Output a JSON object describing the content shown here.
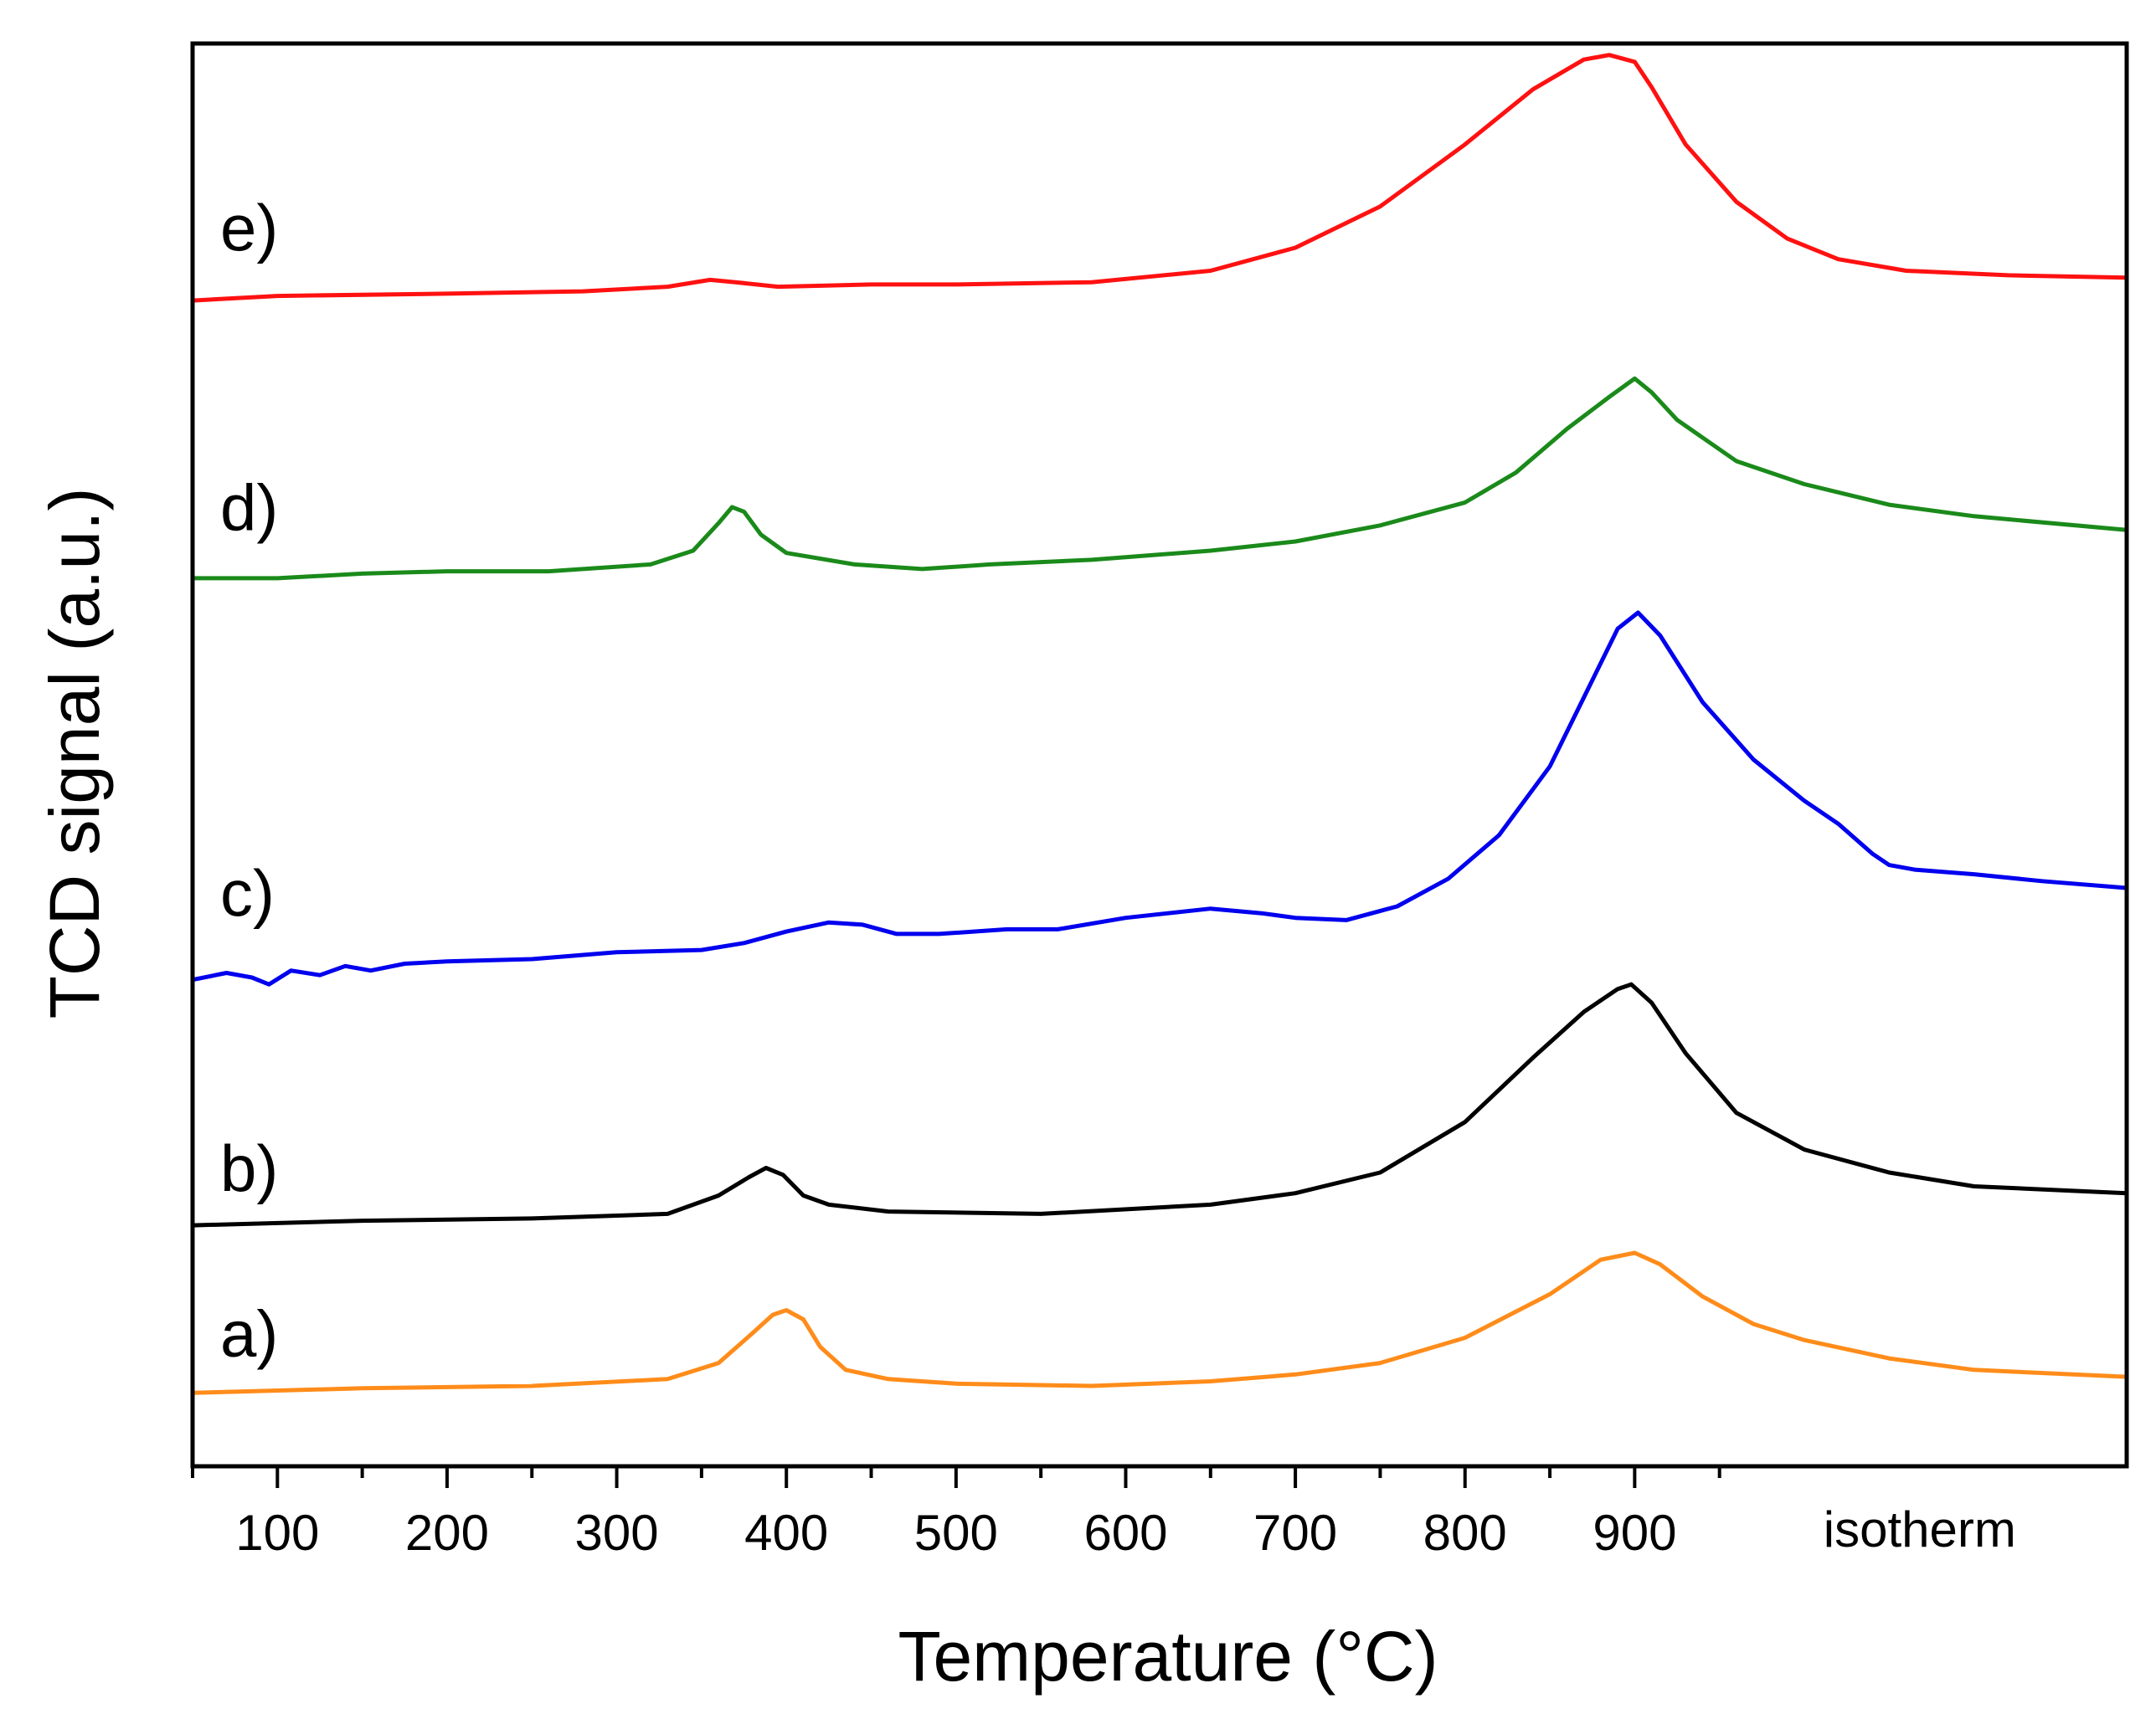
{
  "chart_data": {
    "type": "line",
    "title": "",
    "xlabel": "Temperature (°C)",
    "ylabel": "TCD signal (a.u.)",
    "xlim": [
      50,
      1190
    ],
    "ylim": [
      0,
      6.2
    ],
    "x_ticks": [
      100,
      200,
      300,
      400,
      500,
      600,
      700,
      800,
      900
    ],
    "x_tick_labels": [
      "100",
      "200",
      "300",
      "400",
      "500",
      "600",
      "700",
      "800",
      "900"
    ],
    "isotherm_label": "isotherm",
    "isotherm_label_x": 1068,
    "grid": false,
    "legend": "none",
    "series": [
      {
        "name": "a)",
        "color": "#ff8c1a",
        "label_at": [
          15,
          0.48
        ],
        "points": [
          [
            50,
            0.32
          ],
          [
            150,
            0.34
          ],
          [
            250,
            0.35
          ],
          [
            330,
            0.38
          ],
          [
            360,
            0.45
          ],
          [
            380,
            0.58
          ],
          [
            392,
            0.66
          ],
          [
            400,
            0.68
          ],
          [
            410,
            0.64
          ],
          [
            420,
            0.52
          ],
          [
            435,
            0.42
          ],
          [
            460,
            0.38
          ],
          [
            500,
            0.36
          ],
          [
            580,
            0.35
          ],
          [
            650,
            0.37
          ],
          [
            700,
            0.4
          ],
          [
            750,
            0.45
          ],
          [
            800,
            0.56
          ],
          [
            850,
            0.75
          ],
          [
            880,
            0.9
          ],
          [
            900,
            0.93
          ],
          [
            915,
            0.88
          ],
          [
            940,
            0.74
          ],
          [
            970,
            0.62
          ],
          [
            1000,
            0.55
          ],
          [
            1050,
            0.47
          ],
          [
            1100,
            0.42
          ],
          [
            1190,
            0.39
          ]
        ]
      },
      {
        "name": "b)",
        "color": "#000000",
        "label_at": [
          20,
          1.2
        ],
        "points": [
          [
            50,
            1.05
          ],
          [
            150,
            1.07
          ],
          [
            250,
            1.08
          ],
          [
            330,
            1.1
          ],
          [
            360,
            1.18
          ],
          [
            378,
            1.26
          ],
          [
            388,
            1.3
          ],
          [
            398,
            1.27
          ],
          [
            410,
            1.18
          ],
          [
            425,
            1.14
          ],
          [
            460,
            1.11
          ],
          [
            550,
            1.1
          ],
          [
            650,
            1.14
          ],
          [
            700,
            1.19
          ],
          [
            750,
            1.28
          ],
          [
            800,
            1.5
          ],
          [
            840,
            1.78
          ],
          [
            870,
            1.98
          ],
          [
            890,
            2.08
          ],
          [
            898,
            2.1
          ],
          [
            910,
            2.02
          ],
          [
            930,
            1.8
          ],
          [
            960,
            1.54
          ],
          [
            1000,
            1.38
          ],
          [
            1050,
            1.28
          ],
          [
            1100,
            1.22
          ],
          [
            1190,
            1.19
          ]
        ]
      },
      {
        "name": "c)",
        "color": "#0000ee",
        "label_at": [
          18,
          2.4
        ],
        "points": [
          [
            50,
            2.12
          ],
          [
            70,
            2.15
          ],
          [
            85,
            2.13
          ],
          [
            95,
            2.1
          ],
          [
            108,
            2.16
          ],
          [
            125,
            2.14
          ],
          [
            140,
            2.18
          ],
          [
            155,
            2.16
          ],
          [
            175,
            2.19
          ],
          [
            200,
            2.2
          ],
          [
            250,
            2.21
          ],
          [
            300,
            2.24
          ],
          [
            350,
            2.25
          ],
          [
            375,
            2.28
          ],
          [
            400,
            2.33
          ],
          [
            425,
            2.37
          ],
          [
            445,
            2.36
          ],
          [
            465,
            2.32
          ],
          [
            490,
            2.32
          ],
          [
            530,
            2.34
          ],
          [
            560,
            2.34
          ],
          [
            600,
            2.39
          ],
          [
            650,
            2.43
          ],
          [
            680,
            2.41
          ],
          [
            700,
            2.39
          ],
          [
            730,
            2.38
          ],
          [
            760,
            2.44
          ],
          [
            790,
            2.56
          ],
          [
            820,
            2.75
          ],
          [
            850,
            3.05
          ],
          [
            870,
            3.35
          ],
          [
            890,
            3.65
          ],
          [
            902,
            3.72
          ],
          [
            915,
            3.62
          ],
          [
            940,
            3.33
          ],
          [
            970,
            3.08
          ],
          [
            1000,
            2.9
          ],
          [
            1020,
            2.8
          ],
          [
            1040,
            2.67
          ],
          [
            1050,
            2.62
          ],
          [
            1065,
            2.6
          ],
          [
            1100,
            2.58
          ],
          [
            1140,
            2.55
          ],
          [
            1190,
            2.52
          ]
        ]
      },
      {
        "name": "d)",
        "color": "#1a8a1a",
        "label_at": [
          18,
          4.08
        ],
        "points": [
          [
            50,
            3.87
          ],
          [
            100,
            3.87
          ],
          [
            150,
            3.89
          ],
          [
            200,
            3.9
          ],
          [
            260,
            3.9
          ],
          [
            320,
            3.93
          ],
          [
            345,
            3.99
          ],
          [
            360,
            4.11
          ],
          [
            368,
            4.18
          ],
          [
            375,
            4.16
          ],
          [
            385,
            4.06
          ],
          [
            400,
            3.98
          ],
          [
            440,
            3.93
          ],
          [
            480,
            3.91
          ],
          [
            520,
            3.93
          ],
          [
            580,
            3.95
          ],
          [
            650,
            3.99
          ],
          [
            700,
            4.03
          ],
          [
            750,
            4.1
          ],
          [
            800,
            4.2
          ],
          [
            830,
            4.33
          ],
          [
            860,
            4.52
          ],
          [
            885,
            4.66
          ],
          [
            900,
            4.74
          ],
          [
            910,
            4.68
          ],
          [
            925,
            4.56
          ],
          [
            960,
            4.38
          ],
          [
            1000,
            4.28
          ],
          [
            1050,
            4.19
          ],
          [
            1100,
            4.14
          ],
          [
            1190,
            4.08
          ]
        ]
      },
      {
        "name": "e)",
        "color": "#ff1111",
        "label_at": [
          20,
          5.3
        ],
        "points": [
          [
            50,
            5.08
          ],
          [
            100,
            5.1
          ],
          [
            200,
            5.11
          ],
          [
            280,
            5.12
          ],
          [
            330,
            5.14
          ],
          [
            355,
            5.17
          ],
          [
            370,
            5.16
          ],
          [
            395,
            5.14
          ],
          [
            450,
            5.15
          ],
          [
            500,
            5.15
          ],
          [
            580,
            5.16
          ],
          [
            650,
            5.21
          ],
          [
            700,
            5.31
          ],
          [
            750,
            5.49
          ],
          [
            800,
            5.76
          ],
          [
            840,
            6.0
          ],
          [
            870,
            6.13
          ],
          [
            885,
            6.15
          ],
          [
            900,
            6.12
          ],
          [
            910,
            6.01
          ],
          [
            930,
            5.76
          ],
          [
            960,
            5.51
          ],
          [
            990,
            5.35
          ],
          [
            1020,
            5.26
          ],
          [
            1060,
            5.21
          ],
          [
            1120,
            5.19
          ],
          [
            1190,
            5.18
          ]
        ]
      }
    ]
  }
}
